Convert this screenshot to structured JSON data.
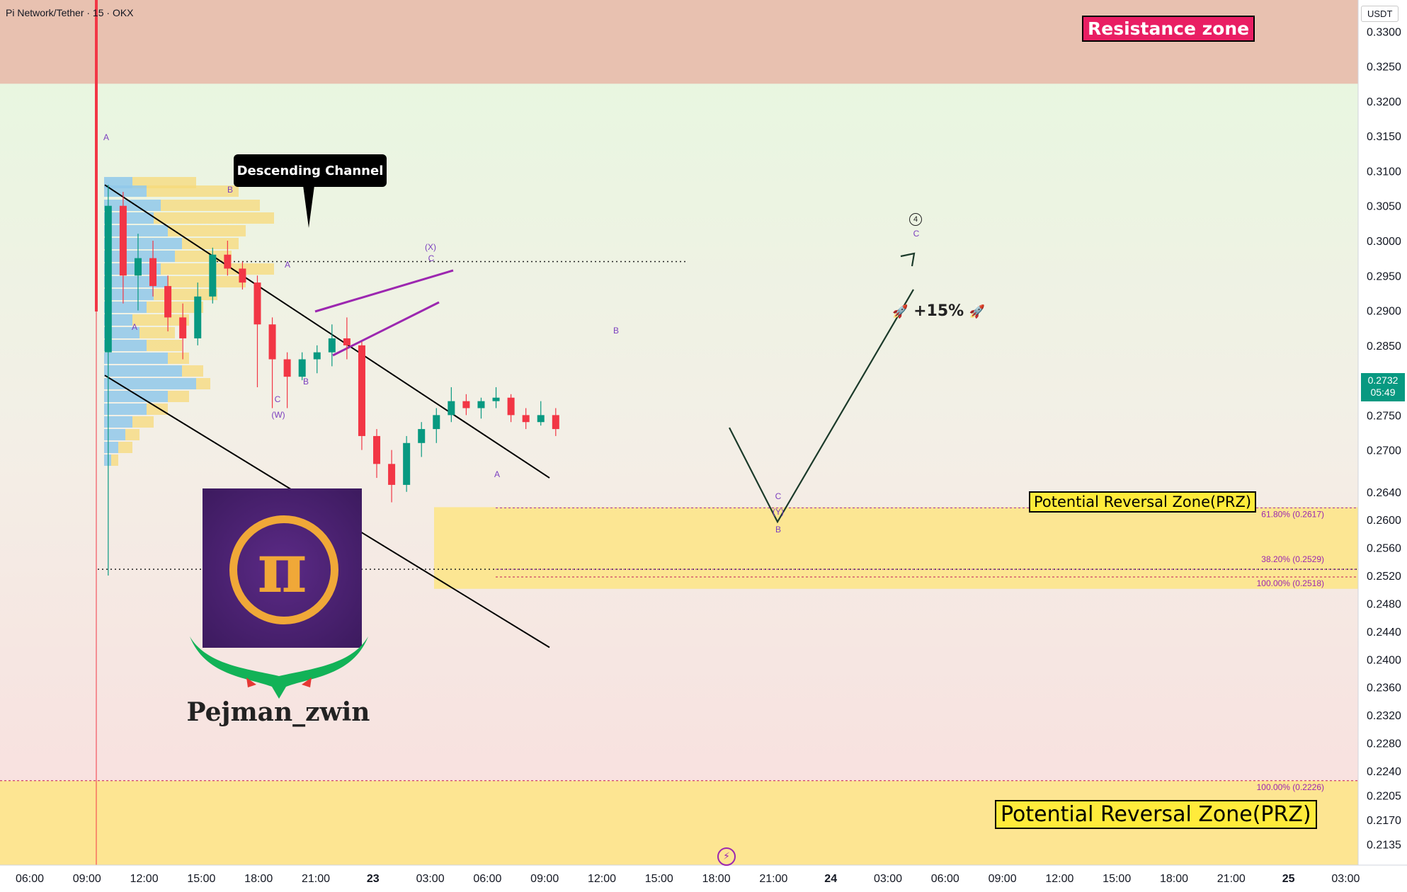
{
  "symbol_title": "Pi Network/Tether · 15 · OKX",
  "currency_badge": "USDT",
  "current_price": {
    "price": "0.2732",
    "countdown": "05:49"
  },
  "annotations": {
    "resistance_zone": "Resistance zone",
    "prz_upper": "Potential Reversal Zone(PRZ)",
    "prz_lower": "Potential Reversal Zone(PRZ)",
    "descending_channel": "Descending Channel",
    "target_pct": "+15%",
    "author": "Pejman_zwin",
    "rocket_icon": "rocket-icon",
    "bolt_icon": "lightning-icon",
    "wave_4": "4"
  },
  "fib_levels": [
    {
      "label": "61.80% (0.2617)",
      "price": 0.2617
    },
    {
      "label": "38.20% (0.2529)",
      "price": 0.2529
    },
    {
      "label": "100.00% (0.2518)",
      "price": 0.2518
    },
    {
      "label": "100.00% (0.2226)",
      "price": 0.2226
    }
  ],
  "colors": {
    "up": "#089981",
    "down": "#f23645",
    "resistance_bg": "#e8c1b0",
    "prz_bg": "#fde68a",
    "wave_label": "#7b3fbf",
    "accent_purple": "#9c27b0"
  },
  "chart_data": {
    "type": "candlestick",
    "y_axis": {
      "ticks": [
        "0.3300",
        "0.3250",
        "0.3200",
        "0.3150",
        "0.3100",
        "0.3050",
        "0.3000",
        "0.2950",
        "0.2900",
        "0.2850",
        "0.2800",
        "0.2750",
        "0.2700",
        "0.2640",
        "0.2600",
        "0.2560",
        "0.2520",
        "0.2480",
        "0.2440",
        "0.2400",
        "0.2360",
        "0.2320",
        "0.2280",
        "0.2240",
        "0.2205",
        "0.2170",
        "0.2135"
      ],
      "range": [
        0.2105,
        0.3345
      ]
    },
    "x_axis": {
      "ticks": [
        "06:00",
        "09:00",
        "12:00",
        "15:00",
        "18:00",
        "21:00",
        "23",
        "03:00",
        "06:00",
        "09:00",
        "12:00",
        "15:00",
        "18:00",
        "21:00",
        "24",
        "03:00",
        "06:00",
        "09:00",
        "12:00",
        "15:00",
        "18:00",
        "21:00",
        "25",
        "03:00"
      ],
      "bold_ticks": [
        "23",
        "24",
        "25"
      ]
    },
    "zones": [
      {
        "name": "Resistance zone",
        "from": 0.3225,
        "to": 0.3345
      },
      {
        "name": "Potential Reversal Zone(PRZ)",
        "from": 0.2501,
        "to": 0.2618
      },
      {
        "name": "Potential Reversal Zone(PRZ)",
        "from": 0.2105,
        "to": 0.2226
      }
    ],
    "dotted_levels": [
      0.297,
      0.2529
    ],
    "channel": {
      "upper": [
        {
          "x": 0,
          "price": 0.308
        },
        {
          "x": 39,
          "price": 0.266
        }
      ],
      "lower": [
        {
          "x": 0,
          "price": 0.2807
        },
        {
          "x": 39,
          "price": 0.2417
        }
      ]
    },
    "candles": [
      {
        "x": 0,
        "o": 0.284,
        "h": 0.308,
        "l": 0.252,
        "c": 0.305
      },
      {
        "x": 1,
        "o": 0.305,
        "h": 0.307,
        "l": 0.291,
        "c": 0.295
      },
      {
        "x": 2,
        "o": 0.295,
        "h": 0.301,
        "l": 0.29,
        "c": 0.2975
      },
      {
        "x": 3,
        "o": 0.2975,
        "h": 0.3,
        "l": 0.292,
        "c": 0.2935
      },
      {
        "x": 4,
        "o": 0.2935,
        "h": 0.295,
        "l": 0.287,
        "c": 0.289
      },
      {
        "x": 5,
        "o": 0.289,
        "h": 0.291,
        "l": 0.283,
        "c": 0.286
      },
      {
        "x": 6,
        "o": 0.286,
        "h": 0.294,
        "l": 0.285,
        "c": 0.292
      },
      {
        "x": 7,
        "o": 0.292,
        "h": 0.299,
        "l": 0.291,
        "c": 0.298
      },
      {
        "x": 8,
        "o": 0.298,
        "h": 0.3,
        "l": 0.295,
        "c": 0.296
      },
      {
        "x": 9,
        "o": 0.296,
        "h": 0.297,
        "l": 0.293,
        "c": 0.294
      },
      {
        "x": 10,
        "o": 0.294,
        "h": 0.295,
        "l": 0.279,
        "c": 0.288
      },
      {
        "x": 11,
        "o": 0.288,
        "h": 0.289,
        "l": 0.276,
        "c": 0.283
      },
      {
        "x": 12,
        "o": 0.283,
        "h": 0.284,
        "l": 0.276,
        "c": 0.2805
      },
      {
        "x": 13,
        "o": 0.2805,
        "h": 0.284,
        "l": 0.28,
        "c": 0.283
      },
      {
        "x": 14,
        "o": 0.283,
        "h": 0.285,
        "l": 0.281,
        "c": 0.284
      },
      {
        "x": 15,
        "o": 0.284,
        "h": 0.288,
        "l": 0.282,
        "c": 0.286
      },
      {
        "x": 16,
        "o": 0.286,
        "h": 0.289,
        "l": 0.283,
        "c": 0.285
      },
      {
        "x": 17,
        "o": 0.285,
        "h": 0.2855,
        "l": 0.27,
        "c": 0.272
      },
      {
        "x": 18,
        "o": 0.272,
        "h": 0.273,
        "l": 0.266,
        "c": 0.268
      },
      {
        "x": 19,
        "o": 0.268,
        "h": 0.27,
        "l": 0.2625,
        "c": 0.265
      },
      {
        "x": 20,
        "o": 0.265,
        "h": 0.272,
        "l": 0.264,
        "c": 0.271
      },
      {
        "x": 21,
        "o": 0.271,
        "h": 0.274,
        "l": 0.269,
        "c": 0.273
      },
      {
        "x": 22,
        "o": 0.273,
        "h": 0.276,
        "l": 0.271,
        "c": 0.275
      },
      {
        "x": 23,
        "o": 0.275,
        "h": 0.279,
        "l": 0.274,
        "c": 0.277
      },
      {
        "x": 24,
        "o": 0.277,
        "h": 0.278,
        "l": 0.275,
        "c": 0.276
      },
      {
        "x": 25,
        "o": 0.276,
        "h": 0.2775,
        "l": 0.2745,
        "c": 0.277
      },
      {
        "x": 26,
        "o": 0.277,
        "h": 0.279,
        "l": 0.276,
        "c": 0.2775
      },
      {
        "x": 27,
        "o": 0.2775,
        "h": 0.278,
        "l": 0.274,
        "c": 0.275
      },
      {
        "x": 28,
        "o": 0.275,
        "h": 0.276,
        "l": 0.273,
        "c": 0.274
      },
      {
        "x": 29,
        "o": 0.274,
        "h": 0.277,
        "l": 0.2735,
        "c": 0.275
      },
      {
        "x": 30,
        "o": 0.275,
        "h": 0.276,
        "l": 0.272,
        "c": 0.273
      }
    ],
    "projection": [
      {
        "x": 30,
        "price": 0.2732
      },
      {
        "x": 32,
        "price": 0.2597
      },
      {
        "x": 35,
        "price": 0.293
      }
    ],
    "wave_labels": [
      {
        "text": "A",
        "x": 0,
        "price": 0.31
      },
      {
        "text": "B",
        "x": 7,
        "price": 0.302
      },
      {
        "text": "A",
        "x": 1,
        "price": 0.281
      },
      {
        "text": "A",
        "x": 10.5,
        "price": 0.2902
      },
      {
        "text": "C",
        "x": 10,
        "price": 0.27
      },
      {
        "text": "(W)",
        "x": 10,
        "price": 0.268
      },
      {
        "text": "B",
        "x": 11.5,
        "price": 0.2735
      },
      {
        "text": "(X)",
        "x": 17,
        "price": 0.2955
      },
      {
        "text": "C",
        "x": 17,
        "price": 0.2938
      },
      {
        "text": "A",
        "x": 19.5,
        "price": 0.2595
      },
      {
        "text": "B",
        "x": 24,
        "price": 0.2802
      },
      {
        "text": "C",
        "x": 32,
        "price": 0.2566
      },
      {
        "text": "(Y)",
        "x": 32,
        "price": 0.2544
      },
      {
        "text": "B",
        "x": 32,
        "price": 0.2515
      },
      {
        "text": "C",
        "x": 35,
        "price": 0.2953
      }
    ]
  }
}
